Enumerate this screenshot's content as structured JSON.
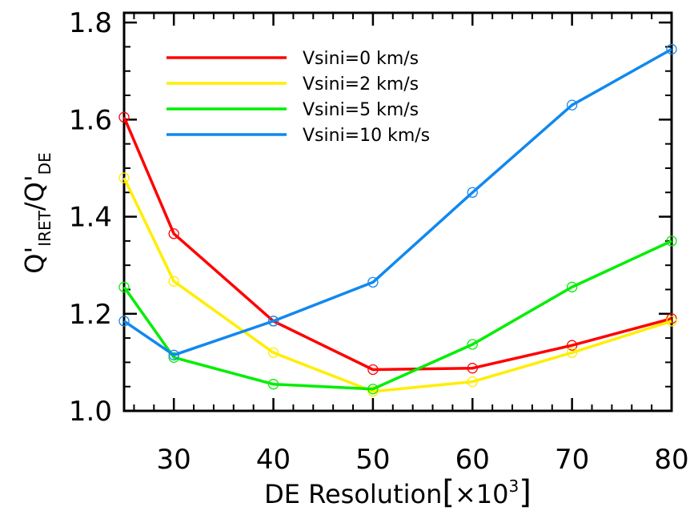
{
  "chart_data": {
    "type": "line",
    "x": [
      25,
      30,
      40,
      50,
      60,
      70,
      80
    ],
    "xlim": [
      25,
      80
    ],
    "ylim": [
      1.0,
      1.82
    ],
    "xticks": [
      "30",
      "40",
      "50",
      "60",
      "70",
      "80"
    ],
    "xtick_values": [
      30,
      40,
      50,
      60,
      70,
      80
    ],
    "yticks": [
      "1.0",
      "1.2",
      "1.4",
      "1.6",
      "1.8"
    ],
    "ytick_values": [
      1.0,
      1.2,
      1.4,
      1.6,
      1.8
    ],
    "xlabel": {
      "text": "DE Resolution",
      "bracket_open": "[",
      "times": "×10",
      "exponent": "3",
      "bracket_close": "]"
    },
    "ylabel": {
      "q1": "Q'",
      "sub1": "IRET",
      "slash": "/",
      "q2": "Q'",
      "sub2": "DE"
    },
    "legend_position": "top-left",
    "grid": false,
    "series": [
      {
        "name": "Vsini=0 km/s",
        "color": "#ff0000",
        "values": [
          1.605,
          1.365,
          1.185,
          1.085,
          1.088,
          1.135,
          1.19
        ]
      },
      {
        "name": "Vsini=2 km/s",
        "color": "#ffee00",
        "values": [
          1.48,
          1.267,
          1.12,
          1.04,
          1.06,
          1.12,
          1.185
        ]
      },
      {
        "name": "Vsini=5 km/s",
        "color": "#00ee00",
        "values": [
          1.255,
          1.11,
          1.055,
          1.045,
          1.137,
          1.255,
          1.35
        ]
      },
      {
        "name": "Vsini=10 km/s",
        "color": "#1188ee",
        "values": [
          1.185,
          1.115,
          1.185,
          1.265,
          1.45,
          1.63,
          1.745
        ]
      }
    ]
  }
}
